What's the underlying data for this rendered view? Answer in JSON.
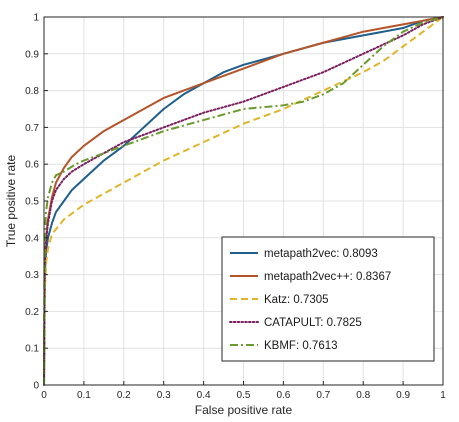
{
  "chart_data": {
    "type": "line",
    "title": "",
    "xlabel": "False positive rate",
    "ylabel": "True positive rate",
    "xlim": [
      0,
      1
    ],
    "ylim": [
      0,
      1
    ],
    "xticks": [
      "0",
      "0.1",
      "0.2",
      "0.3",
      "0.4",
      "0.5",
      "0.6",
      "0.7",
      "0.8",
      "0.9",
      "1"
    ],
    "yticks": [
      "0",
      "0.1",
      "0.2",
      "0.3",
      "0.4",
      "0.5",
      "0.6",
      "0.7",
      "0.8",
      "0.9",
      "1"
    ],
    "grid": true,
    "legend_position": "lower-right",
    "series": [
      {
        "name": "metapath2vec: 0.8093",
        "color": "#1f5f8b",
        "style": "solid",
        "x": [
          0,
          0.002,
          0.005,
          0.01,
          0.02,
          0.03,
          0.05,
          0.07,
          0.1,
          0.15,
          0.2,
          0.25,
          0.3,
          0.35,
          0.4,
          0.45,
          0.5,
          0.6,
          0.7,
          0.8,
          0.9,
          0.95,
          1
        ],
        "y": [
          0,
          0.3,
          0.36,
          0.4,
          0.44,
          0.47,
          0.5,
          0.53,
          0.56,
          0.61,
          0.65,
          0.7,
          0.75,
          0.79,
          0.82,
          0.85,
          0.87,
          0.9,
          0.93,
          0.95,
          0.97,
          0.99,
          1
        ]
      },
      {
        "name": "metapath2vec++: 0.8367",
        "color": "#b5542a",
        "style": "solid",
        "x": [
          0,
          0.002,
          0.005,
          0.01,
          0.02,
          0.03,
          0.05,
          0.07,
          0.1,
          0.15,
          0.2,
          0.25,
          0.3,
          0.35,
          0.4,
          0.5,
          0.6,
          0.7,
          0.8,
          0.9,
          0.95,
          1
        ],
        "y": [
          0,
          0.34,
          0.4,
          0.45,
          0.51,
          0.55,
          0.59,
          0.62,
          0.65,
          0.69,
          0.72,
          0.75,
          0.78,
          0.8,
          0.82,
          0.86,
          0.9,
          0.93,
          0.96,
          0.98,
          0.99,
          1
        ]
      },
      {
        "name": "Katz: 0.7305",
        "color": "#e0b52b",
        "style": "dashed",
        "x": [
          0,
          0.002,
          0.005,
          0.01,
          0.02,
          0.05,
          0.1,
          0.15,
          0.2,
          0.25,
          0.3,
          0.4,
          0.5,
          0.6,
          0.7,
          0.8,
          0.85,
          0.9,
          0.95,
          1
        ],
        "y": [
          0,
          0.25,
          0.33,
          0.37,
          0.41,
          0.45,
          0.49,
          0.52,
          0.55,
          0.58,
          0.61,
          0.66,
          0.71,
          0.75,
          0.8,
          0.85,
          0.88,
          0.92,
          0.96,
          1
        ]
      },
      {
        "name": "CATAPULT: 0.7825",
        "color": "#7b1f5e",
        "style": "dotted",
        "x": [
          0,
          0.002,
          0.005,
          0.01,
          0.02,
          0.03,
          0.05,
          0.07,
          0.1,
          0.15,
          0.2,
          0.3,
          0.4,
          0.5,
          0.6,
          0.7,
          0.8,
          0.9,
          0.95,
          1
        ],
        "y": [
          0,
          0.33,
          0.39,
          0.44,
          0.5,
          0.53,
          0.56,
          0.58,
          0.6,
          0.63,
          0.66,
          0.7,
          0.74,
          0.77,
          0.81,
          0.85,
          0.9,
          0.95,
          0.98,
          1
        ]
      },
      {
        "name": "KBMF: 0.7613",
        "color": "#6a9a2f",
        "style": "dashdot",
        "x": [
          0,
          0.001,
          0.003,
          0.005,
          0.01,
          0.02,
          0.03,
          0.05,
          0.08,
          0.1,
          0.2,
          0.3,
          0.4,
          0.5,
          0.6,
          0.65,
          0.7,
          0.75,
          0.8,
          0.85,
          0.9,
          0.95,
          1
        ],
        "y": [
          0,
          0.3,
          0.42,
          0.47,
          0.51,
          0.55,
          0.57,
          0.58,
          0.6,
          0.61,
          0.65,
          0.69,
          0.72,
          0.75,
          0.76,
          0.77,
          0.79,
          0.82,
          0.87,
          0.92,
          0.96,
          0.985,
          1
        ]
      }
    ]
  }
}
